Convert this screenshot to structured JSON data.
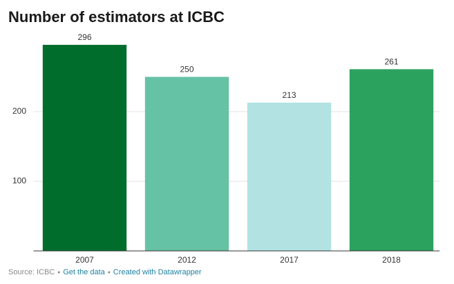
{
  "chart_data": {
    "type": "bar",
    "title": "Number of estimators at ICBC",
    "categories": [
      "2007",
      "2012",
      "2017",
      "2018"
    ],
    "values": [
      296,
      250,
      213,
      261
    ],
    "colors": [
      "#006d2c",
      "#66c2a4",
      "#b2e2e2",
      "#2ca25f"
    ],
    "ylim": [
      0,
      300
    ],
    "yticks": [
      100,
      200
    ],
    "grid": true,
    "source": "Source: ICBC",
    "links": [
      "Get the data",
      "Created with Datawrapper"
    ]
  }
}
